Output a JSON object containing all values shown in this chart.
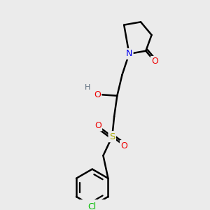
{
  "bg_color": "#ebebeb",
  "atom_colors": {
    "C": "#000000",
    "N": "#0000ee",
    "O": "#ee0000",
    "S": "#aaaa00",
    "Cl": "#00bb00",
    "H": "#607080"
  },
  "bond_color": "#000000",
  "bond_width": 1.8
}
